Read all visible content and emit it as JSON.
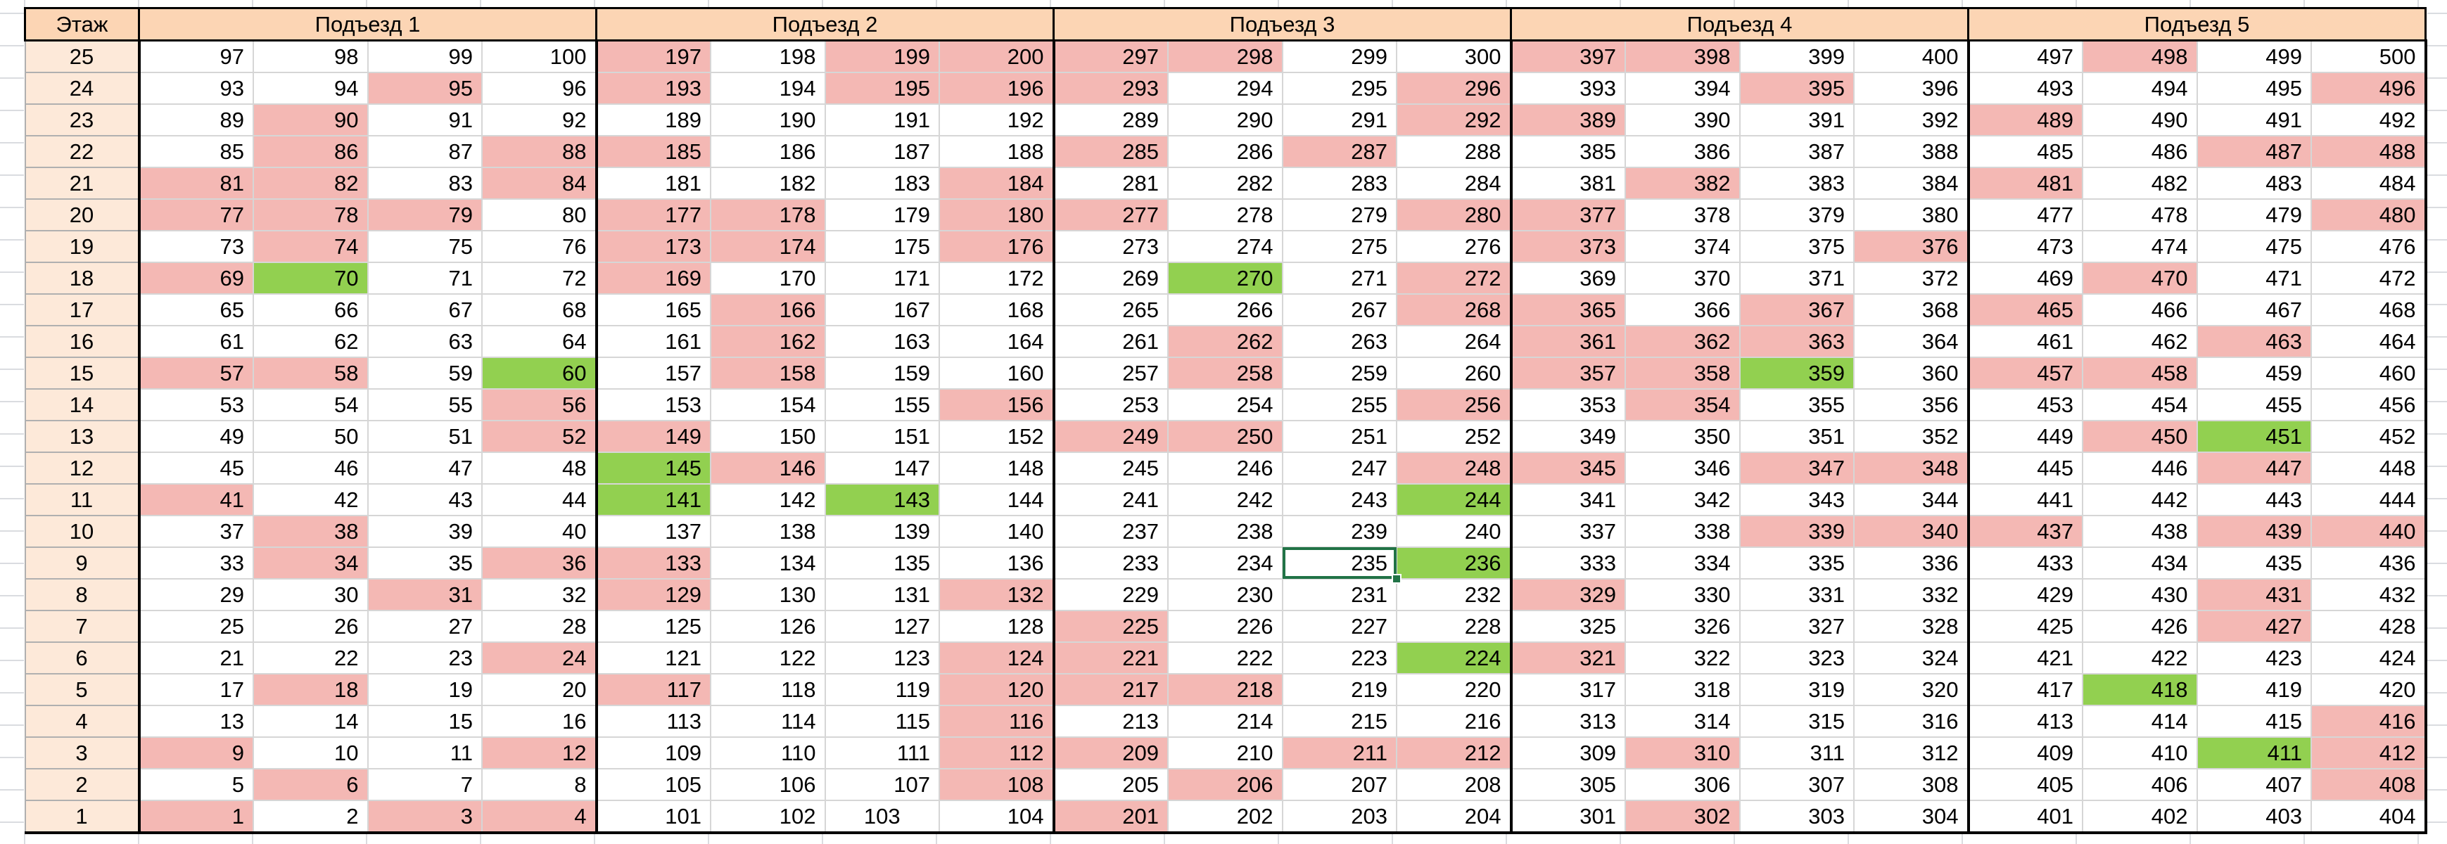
{
  "header": {
    "floor_label": "Этаж",
    "entrances": [
      "Подъезд 1",
      "Подъезд 2",
      "Подъезд 3",
      "Подъезд 4",
      "Подъезд 5"
    ]
  },
  "floors": [
    25,
    24,
    23,
    22,
    21,
    20,
    19,
    18,
    17,
    16,
    15,
    14,
    13,
    12,
    11,
    10,
    9,
    8,
    7,
    6,
    5,
    4,
    3,
    2,
    1
  ],
  "colors": {
    "pink": "#f4b8b4",
    "green": "#92d050",
    "header": "#fcd5b4",
    "floor": "#fde9d9"
  },
  "rows": [
    [
      "w",
      "w",
      "w",
      "w",
      "p",
      "w",
      "p",
      "p",
      "p",
      "p",
      "w",
      "w",
      "p",
      "p",
      "w",
      "w",
      "w",
      "p",
      "w",
      "w"
    ],
    [
      "w",
      "w",
      "p",
      "w",
      "p",
      "w",
      "p",
      "p",
      "p",
      "w",
      "w",
      "p",
      "w",
      "w",
      "p",
      "w",
      "w",
      "w",
      "w",
      "p"
    ],
    [
      "w",
      "p",
      "w",
      "w",
      "w",
      "w",
      "w",
      "w",
      "w",
      "w",
      "w",
      "p",
      "p",
      "w",
      "w",
      "w",
      "p",
      "w",
      "w",
      "w"
    ],
    [
      "w",
      "p",
      "w",
      "p",
      "p",
      "w",
      "w",
      "w",
      "p",
      "w",
      "p",
      "w",
      "w",
      "w",
      "w",
      "w",
      "w",
      "w",
      "p",
      "p"
    ],
    [
      "p",
      "p",
      "w",
      "p",
      "w",
      "w",
      "w",
      "p",
      "w",
      "w",
      "w",
      "w",
      "w",
      "p",
      "w",
      "w",
      "p",
      "w",
      "w",
      "w"
    ],
    [
      "p",
      "p",
      "p",
      "w",
      "p",
      "p",
      "w",
      "p",
      "p",
      "w",
      "w",
      "p",
      "p",
      "w",
      "w",
      "w",
      "w",
      "w",
      "w",
      "p"
    ],
    [
      "w",
      "p",
      "w",
      "w",
      "p",
      "p",
      "w",
      "p",
      "w",
      "w",
      "w",
      "w",
      "p",
      "w",
      "w",
      "p",
      "w",
      "w",
      "w",
      "w"
    ],
    [
      "p",
      "g",
      "w",
      "w",
      "p",
      "w",
      "w",
      "w",
      "w",
      "g",
      "w",
      "p",
      "w",
      "w",
      "w",
      "w",
      "w",
      "p",
      "w",
      "w"
    ],
    [
      "w",
      "w",
      "w",
      "w",
      "w",
      "p",
      "w",
      "w",
      "w",
      "w",
      "w",
      "p",
      "p",
      "w",
      "p",
      "w",
      "p",
      "w",
      "w",
      "w"
    ],
    [
      "w",
      "w",
      "w",
      "w",
      "w",
      "p",
      "w",
      "w",
      "w",
      "p",
      "w",
      "w",
      "p",
      "p",
      "p",
      "w",
      "w",
      "w",
      "p",
      "w"
    ],
    [
      "p",
      "p",
      "w",
      "g",
      "w",
      "p",
      "w",
      "w",
      "w",
      "p",
      "w",
      "w",
      "p",
      "p",
      "g",
      "w",
      "p",
      "p",
      "w",
      "w"
    ],
    [
      "w",
      "w",
      "w",
      "p",
      "w",
      "w",
      "w",
      "p",
      "w",
      "w",
      "w",
      "p",
      "w",
      "p",
      "w",
      "w",
      "w",
      "w",
      "w",
      "w"
    ],
    [
      "w",
      "w",
      "w",
      "p",
      "p",
      "w",
      "w",
      "w",
      "p",
      "p",
      "w",
      "w",
      "w",
      "w",
      "w",
      "w",
      "w",
      "p",
      "g",
      "w"
    ],
    [
      "w",
      "w",
      "w",
      "w",
      "g",
      "p",
      "w",
      "w",
      "w",
      "w",
      "w",
      "p",
      "p",
      "w",
      "p",
      "p",
      "w",
      "w",
      "p",
      "w"
    ],
    [
      "p",
      "w",
      "w",
      "w",
      "g",
      "w",
      "g",
      "w",
      "w",
      "w",
      "w",
      "g",
      "w",
      "w",
      "w",
      "w",
      "w",
      "w",
      "w",
      "w"
    ],
    [
      "w",
      "p",
      "w",
      "w",
      "w",
      "w",
      "w",
      "w",
      "w",
      "w",
      "w",
      "w",
      "w",
      "w",
      "p",
      "p",
      "p",
      "w",
      "p",
      "p"
    ],
    [
      "w",
      "p",
      "w",
      "p",
      "p",
      "w",
      "w",
      "w",
      "w",
      "w",
      "w",
      "g",
      "w",
      "w",
      "w",
      "w",
      "w",
      "w",
      "w",
      "w"
    ],
    [
      "w",
      "w",
      "p",
      "w",
      "p",
      "w",
      "w",
      "p",
      "w",
      "w",
      "w",
      "w",
      "p",
      "w",
      "w",
      "w",
      "w",
      "w",
      "p",
      "w"
    ],
    [
      "w",
      "w",
      "w",
      "w",
      "w",
      "w",
      "w",
      "w",
      "p",
      "w",
      "w",
      "w",
      "w",
      "w",
      "w",
      "w",
      "w",
      "w",
      "p",
      "w"
    ],
    [
      "w",
      "w",
      "w",
      "p",
      "w",
      "w",
      "w",
      "p",
      "p",
      "w",
      "w",
      "g",
      "p",
      "w",
      "w",
      "w",
      "w",
      "w",
      "w",
      "w"
    ],
    [
      "w",
      "p",
      "w",
      "w",
      "p",
      "w",
      "w",
      "p",
      "p",
      "p",
      "w",
      "w",
      "w",
      "w",
      "w",
      "w",
      "w",
      "g",
      "w",
      "w"
    ],
    [
      "w",
      "w",
      "w",
      "w",
      "w",
      "w",
      "w",
      "p",
      "w",
      "w",
      "w",
      "w",
      "w",
      "w",
      "w",
      "w",
      "w",
      "w",
      "w",
      "p"
    ],
    [
      "p",
      "w",
      "w",
      "p",
      "w",
      "w",
      "w",
      "p",
      "p",
      "w",
      "p",
      "p",
      "w",
      "p",
      "w",
      "w",
      "w",
      "w",
      "g",
      "p"
    ],
    [
      "w",
      "p",
      "w",
      "w",
      "w",
      "w",
      "w",
      "p",
      "w",
      "p",
      "w",
      "w",
      "w",
      "w",
      "w",
      "w",
      "w",
      "w",
      "w",
      "p"
    ],
    [
      "p",
      "w",
      "p",
      "p",
      "w",
      "w",
      "w",
      "w",
      "p",
      "w",
      "w",
      "w",
      "w",
      "p",
      "w",
      "w",
      "w",
      "w",
      "w",
      "w"
    ]
  ],
  "selected_cell": "235"
}
